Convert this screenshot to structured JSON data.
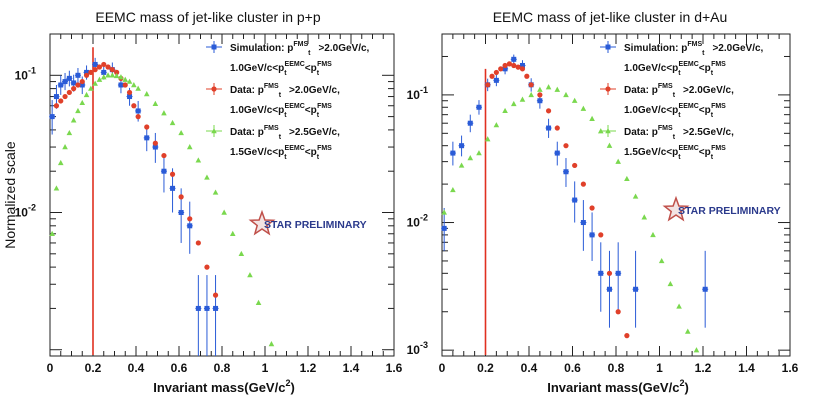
{
  "chart_data": [
    {
      "type": "scatter",
      "title": "EEMC mass of jet-like cluster in p+p",
      "xlabel": "Invariant mass(GeV/c",
      "xlabel_sup": "2",
      "xlabel_close": ")",
      "ylabel": "Normalized scale",
      "yscale": "log",
      "xlim": [
        0,
        1.6
      ],
      "ylim": [
        0.0009,
        0.2
      ],
      "xticks": [
        "0",
        "0.2",
        "0.4",
        "0.6",
        "0.8",
        "1",
        "1.2",
        "1.4",
        "1.6"
      ],
      "yticks": [
        {
          "value": 0.1,
          "base": "10",
          "exp": "-1"
        },
        {
          "value": 0.01,
          "base": "10",
          "exp": "-2"
        }
      ],
      "cut_line_x": 0.2,
      "watermark": "STAR PRELIMINARY",
      "series": [
        {
          "color": "#2a5bd7",
          "marker": "square",
          "legend_line1": [
            "Simulation: p",
            "t",
            "FMS",
            ">2.0GeV/c,"
          ],
          "legend_line2": [
            "1.0GeV/c<p",
            "t",
            "EEMC",
            "<p",
            "t",
            "FMS"
          ],
          "points": [
            {
              "x": 0.01,
              "y": 0.05,
              "lo": 0.037,
              "hi": 0.066
            },
            {
              "x": 0.03,
              "y": 0.07,
              "lo": 0.057,
              "hi": 0.085
            },
            {
              "x": 0.05,
              "y": 0.085,
              "lo": 0.072,
              "hi": 0.1
            },
            {
              "x": 0.07,
              "y": 0.09,
              "lo": 0.078,
              "hi": 0.104
            },
            {
              "x": 0.09,
              "y": 0.095,
              "lo": 0.083,
              "hi": 0.108
            },
            {
              "x": 0.11,
              "y": 0.088,
              "lo": 0.076,
              "hi": 0.101
            },
            {
              "x": 0.13,
              "y": 0.1,
              "lo": 0.088,
              "hi": 0.113
            },
            {
              "x": 0.15,
              "y": 0.085,
              "lo": 0.073,
              "hi": 0.098
            },
            {
              "x": 0.17,
              "y": 0.105,
              "lo": 0.093,
              "hi": 0.118
            },
            {
              "x": 0.21,
              "y": 0.12,
              "lo": 0.107,
              "hi": 0.134
            },
            {
              "x": 0.25,
              "y": 0.105,
              "lo": 0.093,
              "hi": 0.118
            },
            {
              "x": 0.29,
              "y": 0.11,
              "lo": 0.097,
              "hi": 0.124
            },
            {
              "x": 0.33,
              "y": 0.085,
              "lo": 0.074,
              "hi": 0.097
            },
            {
              "x": 0.37,
              "y": 0.07,
              "lo": 0.06,
              "hi": 0.081
            },
            {
              "x": 0.41,
              "y": 0.055,
              "lo": 0.046,
              "hi": 0.065
            },
            {
              "x": 0.45,
              "y": 0.035,
              "lo": 0.028,
              "hi": 0.043
            },
            {
              "x": 0.49,
              "y": 0.03,
              "lo": 0.023,
              "hi": 0.038
            },
            {
              "x": 0.53,
              "y": 0.02,
              "lo": 0.014,
              "hi": 0.027
            },
            {
              "x": 0.57,
              "y": 0.015,
              "lo": 0.01,
              "hi": 0.021
            },
            {
              "x": 0.61,
              "y": 0.01,
              "lo": 0.006,
              "hi": 0.015
            },
            {
              "x": 0.65,
              "y": 0.008,
              "lo": 0.005,
              "hi": 0.012
            },
            {
              "x": 0.69,
              "y": 0.002,
              "lo": 0.0009,
              "hi": 0.0035
            },
            {
              "x": 0.73,
              "y": 0.002,
              "lo": 0.0009,
              "hi": 0.0035
            },
            {
              "x": 0.77,
              "y": 0.002,
              "lo": 0.0009,
              "hi": 0.0035
            }
          ]
        },
        {
          "color": "#e0402a",
          "marker": "circle",
          "legend_line1": [
            "Data: p",
            "t",
            "FMS",
            ">2.0GeV/c,"
          ],
          "legend_line2": [
            "1.0GeV/c<p",
            "t",
            "EEMC",
            "<p",
            "t",
            "FMS"
          ],
          "points": [
            {
              "x": 0.03,
              "y": 0.06
            },
            {
              "x": 0.05,
              "y": 0.065
            },
            {
              "x": 0.07,
              "y": 0.07
            },
            {
              "x": 0.09,
              "y": 0.075
            },
            {
              "x": 0.11,
              "y": 0.08
            },
            {
              "x": 0.13,
              "y": 0.085
            },
            {
              "x": 0.15,
              "y": 0.09
            },
            {
              "x": 0.17,
              "y": 0.1
            },
            {
              "x": 0.19,
              "y": 0.105
            },
            {
              "x": 0.21,
              "y": 0.11
            },
            {
              "x": 0.23,
              "y": 0.115
            },
            {
              "x": 0.25,
              "y": 0.12
            },
            {
              "x": 0.27,
              "y": 0.115
            },
            {
              "x": 0.29,
              "y": 0.11
            },
            {
              "x": 0.31,
              "y": 0.105
            },
            {
              "x": 0.33,
              "y": 0.095
            },
            {
              "x": 0.35,
              "y": 0.085
            },
            {
              "x": 0.37,
              "y": 0.075
            },
            {
              "x": 0.39,
              "y": 0.06
            },
            {
              "x": 0.41,
              "y": 0.05
            },
            {
              "x": 0.45,
              "y": 0.042
            },
            {
              "x": 0.49,
              "y": 0.032
            },
            {
              "x": 0.53,
              "y": 0.026
            },
            {
              "x": 0.57,
              "y": 0.019
            },
            {
              "x": 0.61,
              "y": 0.013
            },
            {
              "x": 0.65,
              "y": 0.009
            },
            {
              "x": 0.69,
              "y": 0.006
            },
            {
              "x": 0.73,
              "y": 0.004
            },
            {
              "x": 0.77,
              "y": 0.0025
            }
          ]
        },
        {
          "color": "#7ad84e",
          "marker": "triangle",
          "legend_line1": [
            "Data: p",
            "t",
            "FMS",
            ">2.5GeV/c,"
          ],
          "legend_line2": [
            "1.5GeV/c<p",
            "t",
            "EEMC",
            "<p",
            "t",
            "FMS"
          ],
          "points": [
            {
              "x": 0.01,
              "y": 0.007
            },
            {
              "x": 0.03,
              "y": 0.015
            },
            {
              "x": 0.05,
              "y": 0.023
            },
            {
              "x": 0.07,
              "y": 0.03
            },
            {
              "x": 0.09,
              "y": 0.038
            },
            {
              "x": 0.11,
              "y": 0.047
            },
            {
              "x": 0.13,
              "y": 0.055
            },
            {
              "x": 0.15,
              "y": 0.063
            },
            {
              "x": 0.17,
              "y": 0.072
            },
            {
              "x": 0.19,
              "y": 0.08
            },
            {
              "x": 0.21,
              "y": 0.087
            },
            {
              "x": 0.23,
              "y": 0.093
            },
            {
              "x": 0.25,
              "y": 0.097
            },
            {
              "x": 0.27,
              "y": 0.1
            },
            {
              "x": 0.29,
              "y": 0.1
            },
            {
              "x": 0.31,
              "y": 0.099
            },
            {
              "x": 0.33,
              "y": 0.097
            },
            {
              "x": 0.35,
              "y": 0.093
            },
            {
              "x": 0.37,
              "y": 0.09
            },
            {
              "x": 0.39,
              "y": 0.085
            },
            {
              "x": 0.41,
              "y": 0.08
            },
            {
              "x": 0.45,
              "y": 0.073
            },
            {
              "x": 0.49,
              "y": 0.062
            },
            {
              "x": 0.53,
              "y": 0.053
            },
            {
              "x": 0.57,
              "y": 0.045
            },
            {
              "x": 0.61,
              "y": 0.038
            },
            {
              "x": 0.65,
              "y": 0.03
            },
            {
              "x": 0.69,
              "y": 0.024
            },
            {
              "x": 0.73,
              "y": 0.018
            },
            {
              "x": 0.77,
              "y": 0.014
            },
            {
              "x": 0.81,
              "y": 0.01
            },
            {
              "x": 0.85,
              "y": 0.007
            },
            {
              "x": 0.89,
              "y": 0.005
            },
            {
              "x": 0.93,
              "y": 0.0035
            },
            {
              "x": 0.97,
              "y": 0.0022
            },
            {
              "x": 1.03,
              "y": 0.0011
            }
          ]
        }
      ]
    },
    {
      "type": "scatter",
      "title": "EEMC mass of jet-like cluster in d+Au",
      "xlabel": "Invariant mass(GeV/c",
      "xlabel_sup": "2",
      "xlabel_close": ")",
      "ylabel": "",
      "yscale": "log",
      "xlim": [
        0,
        1.6
      ],
      "ylim": [
        0.0009,
        0.3
      ],
      "xticks": [
        "0",
        "0.2",
        "0.4",
        "0.6",
        "0.8",
        "1",
        "1.2",
        "1.4",
        "1.6"
      ],
      "yticks": [
        {
          "value": 0.1,
          "base": "10",
          "exp": "-1"
        },
        {
          "value": 0.01,
          "base": "10",
          "exp": "-2"
        },
        {
          "value": 0.001,
          "base": "10",
          "exp": "-3"
        }
      ],
      "cut_line_x": 0.2,
      "watermark": "STAR PRELIMINARY",
      "series": [
        {
          "color": "#2a5bd7",
          "marker": "square",
          "legend_line1": [
            "Simulation: p",
            "t",
            "FMS",
            ">2.0GeV/c,"
          ],
          "legend_line2": [
            "1.0GeV/c<p",
            "t",
            "EEMC",
            "<p",
            "t",
            "FMS"
          ],
          "points": [
            {
              "x": 0.01,
              "y": 0.009,
              "lo": 0.006,
              "hi": 0.013
            },
            {
              "x": 0.05,
              "y": 0.035,
              "lo": 0.028,
              "hi": 0.043
            },
            {
              "x": 0.09,
              "y": 0.04,
              "lo": 0.033,
              "hi": 0.048
            },
            {
              "x": 0.13,
              "y": 0.06,
              "lo": 0.051,
              "hi": 0.07
            },
            {
              "x": 0.17,
              "y": 0.08,
              "lo": 0.07,
              "hi": 0.091
            },
            {
              "x": 0.21,
              "y": 0.12,
              "lo": 0.107,
              "hi": 0.134
            },
            {
              "x": 0.25,
              "y": 0.13,
              "lo": 0.117,
              "hi": 0.145
            },
            {
              "x": 0.29,
              "y": 0.16,
              "lo": 0.145,
              "hi": 0.176
            },
            {
              "x": 0.33,
              "y": 0.19,
              "lo": 0.173,
              "hi": 0.207
            },
            {
              "x": 0.37,
              "y": 0.17,
              "lo": 0.154,
              "hi": 0.187
            },
            {
              "x": 0.41,
              "y": 0.12,
              "lo": 0.106,
              "hi": 0.135
            },
            {
              "x": 0.45,
              "y": 0.09,
              "lo": 0.078,
              "hi": 0.103
            },
            {
              "x": 0.49,
              "y": 0.055,
              "lo": 0.046,
              "hi": 0.065
            },
            {
              "x": 0.53,
              "y": 0.035,
              "lo": 0.028,
              "hi": 0.043
            },
            {
              "x": 0.57,
              "y": 0.025,
              "lo": 0.019,
              "hi": 0.032
            },
            {
              "x": 0.61,
              "y": 0.015,
              "lo": 0.01,
              "hi": 0.021
            },
            {
              "x": 0.65,
              "y": 0.01,
              "lo": 0.006,
              "hi": 0.015
            },
            {
              "x": 0.69,
              "y": 0.008,
              "lo": 0.005,
              "hi": 0.012
            },
            {
              "x": 0.73,
              "y": 0.004,
              "lo": 0.002,
              "hi": 0.007
            },
            {
              "x": 0.77,
              "y": 0.003,
              "lo": 0.0015,
              "hi": 0.006
            },
            {
              "x": 0.81,
              "y": 0.004,
              "lo": 0.002,
              "hi": 0.007
            },
            {
              "x": 0.89,
              "y": 0.003,
              "lo": 0.0015,
              "hi": 0.006
            },
            {
              "x": 1.21,
              "y": 0.003,
              "lo": 0.0015,
              "hi": 0.006
            }
          ]
        },
        {
          "color": "#e0402a",
          "marker": "circle",
          "legend_line1": [
            "Data: p",
            "t",
            "FMS",
            ">2.0GeV/c,"
          ],
          "legend_line2": [
            "1.0GeV/c<p",
            "t",
            "EEMC",
            "<p",
            "t",
            "FMS"
          ],
          "points": [
            {
              "x": 0.21,
              "y": 0.12
            },
            {
              "x": 0.23,
              "y": 0.14
            },
            {
              "x": 0.25,
              "y": 0.15
            },
            {
              "x": 0.27,
              "y": 0.16
            },
            {
              "x": 0.29,
              "y": 0.17
            },
            {
              "x": 0.31,
              "y": 0.175
            },
            {
              "x": 0.33,
              "y": 0.17
            },
            {
              "x": 0.35,
              "y": 0.165
            },
            {
              "x": 0.37,
              "y": 0.16
            },
            {
              "x": 0.39,
              "y": 0.14
            },
            {
              "x": 0.41,
              "y": 0.12
            },
            {
              "x": 0.45,
              "y": 0.1
            },
            {
              "x": 0.49,
              "y": 0.075
            },
            {
              "x": 0.53,
              "y": 0.055
            },
            {
              "x": 0.57,
              "y": 0.04
            },
            {
              "x": 0.61,
              "y": 0.028
            },
            {
              "x": 0.65,
              "y": 0.02
            },
            {
              "x": 0.69,
              "y": 0.013
            },
            {
              "x": 0.73,
              "y": 0.008
            },
            {
              "x": 0.77,
              "y": 0.004
            },
            {
              "x": 0.81,
              "y": 0.002
            },
            {
              "x": 0.85,
              "y": 0.0013
            }
          ]
        },
        {
          "color": "#7ad84e",
          "marker": "triangle",
          "legend_line1": [
            "Data: p",
            "t",
            "FMS",
            ">2.5GeV/c,"
          ],
          "legend_line2": [
            "1.5GeV/c<p",
            "t",
            "EEMC",
            "<p",
            "t",
            "FMS"
          ],
          "points": [
            {
              "x": 0.01,
              "y": 0.012
            },
            {
              "x": 0.05,
              "y": 0.018
            },
            {
              "x": 0.09,
              "y": 0.028
            },
            {
              "x": 0.13,
              "y": 0.032
            },
            {
              "x": 0.17,
              "y": 0.035
            },
            {
              "x": 0.21,
              "y": 0.045
            },
            {
              "x": 0.25,
              "y": 0.058
            },
            {
              "x": 0.29,
              "y": 0.075
            },
            {
              "x": 0.33,
              "y": 0.085
            },
            {
              "x": 0.37,
              "y": 0.092
            },
            {
              "x": 0.41,
              "y": 0.1
            },
            {
              "x": 0.45,
              "y": 0.11
            },
            {
              "x": 0.49,
              "y": 0.115
            },
            {
              "x": 0.53,
              "y": 0.11
            },
            {
              "x": 0.57,
              "y": 0.1
            },
            {
              "x": 0.61,
              "y": 0.09
            },
            {
              "x": 0.65,
              "y": 0.078
            },
            {
              "x": 0.69,
              "y": 0.065
            },
            {
              "x": 0.73,
              "y": 0.052
            },
            {
              "x": 0.77,
              "y": 0.04
            },
            {
              "x": 0.81,
              "y": 0.03
            },
            {
              "x": 0.85,
              "y": 0.022
            },
            {
              "x": 0.89,
              "y": 0.016
            },
            {
              "x": 0.93,
              "y": 0.011
            },
            {
              "x": 0.97,
              "y": 0.008
            },
            {
              "x": 1.01,
              "y": 0.005
            },
            {
              "x": 1.05,
              "y": 0.0033
            },
            {
              "x": 1.09,
              "y": 0.0022
            },
            {
              "x": 1.13,
              "y": 0.0014
            },
            {
              "x": 1.17,
              "y": 0.001
            }
          ]
        }
      ]
    }
  ]
}
